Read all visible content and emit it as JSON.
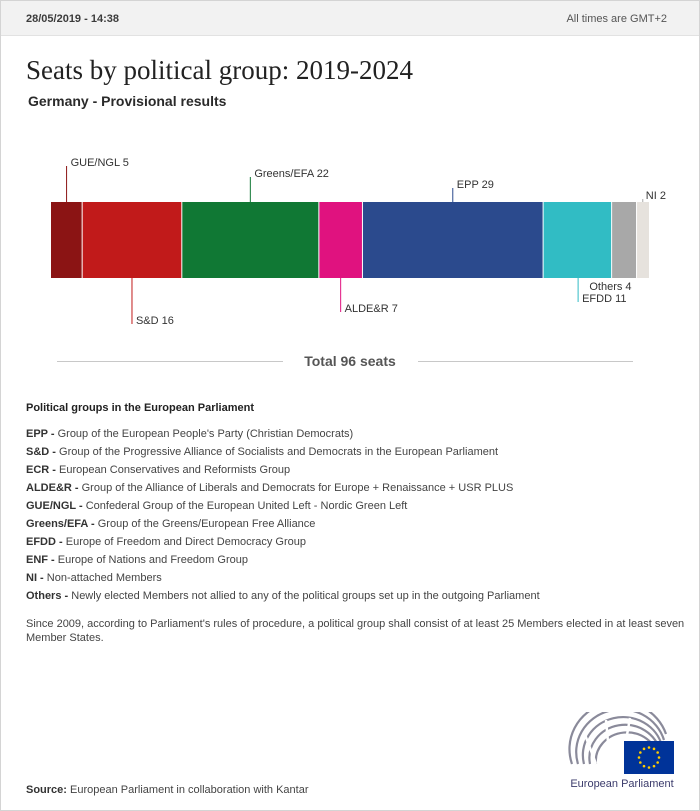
{
  "header": {
    "timestamp": "28/05/2019 - 14:38",
    "timezone_note": "All times are GMT+2"
  },
  "title": "Seats by political group: 2019-2024",
  "subtitle": "Germany - Provisional results",
  "chart_data": {
    "type": "bar",
    "orientation": "horizontal-stacked",
    "categories": [
      "GUE/NGL",
      "S&D",
      "Greens/EFA",
      "ALDE&R",
      "EPP",
      "EFDD",
      "Others",
      "NI"
    ],
    "values": [
      5,
      16,
      22,
      7,
      29,
      11,
      4,
      2
    ],
    "labels": [
      "GUE/NGL 5",
      "S&D 16",
      "Greens/EFA 22",
      "ALDE&R 7",
      "EPP 29",
      "EFDD 11",
      "Others 4",
      "NI 2"
    ],
    "colors": [
      "#8b1414",
      "#c11a1a",
      "#107834",
      "#e0127f",
      "#2b4a8d",
      "#31bcc4",
      "#a8a8a8",
      "#e6e2dd"
    ],
    "label_side": [
      "above",
      "below",
      "above",
      "below",
      "above",
      "below",
      "below",
      "above"
    ],
    "total": 96
  },
  "total_label": "Total 96 seats",
  "groups_title": "Political groups in the European Parliament",
  "groups": [
    {
      "abbr": "EPP -",
      "desc": "Group of the European People's Party (Christian Democrats)"
    },
    {
      "abbr": "S&D -",
      "desc": "Group of the Progressive Alliance of Socialists and Democrats in the European Parliament"
    },
    {
      "abbr": "ECR -",
      "desc": "European Conservatives and Reformists Group"
    },
    {
      "abbr": "ALDE&R -",
      "desc": "Group of the Alliance of Liberals and Democrats for Europe + Renaissance + USR PLUS"
    },
    {
      "abbr": "GUE/NGL -",
      "desc": "Confederal Group of the European United Left - Nordic Green Left"
    },
    {
      "abbr": "Greens/EFA -",
      "desc": "Group of the Greens/European Free Alliance"
    },
    {
      "abbr": "EFDD -",
      "desc": "Europe of Freedom and Direct Democracy Group"
    },
    {
      "abbr": "ENF -",
      "desc": "Europe of Nations and Freedom Group"
    },
    {
      "abbr": "NI -",
      "desc": "Non-attached Members"
    },
    {
      "abbr": "Others -",
      "desc": "Newly elected Members not allied to any of the political groups set up in the outgoing Parliament"
    }
  ],
  "note": "Since 2009, according to Parliament's rules of procedure, a political group shall consist of at least 25 Members elected in at least seven Member States.",
  "source": {
    "label": "Source:",
    "text": "European Parliament in collaboration with Kantar"
  },
  "logo": {
    "text": "European Parliament",
    "icon": "european-parliament-logo",
    "flag_color": "#003399",
    "star_color": "#ffcc00"
  }
}
